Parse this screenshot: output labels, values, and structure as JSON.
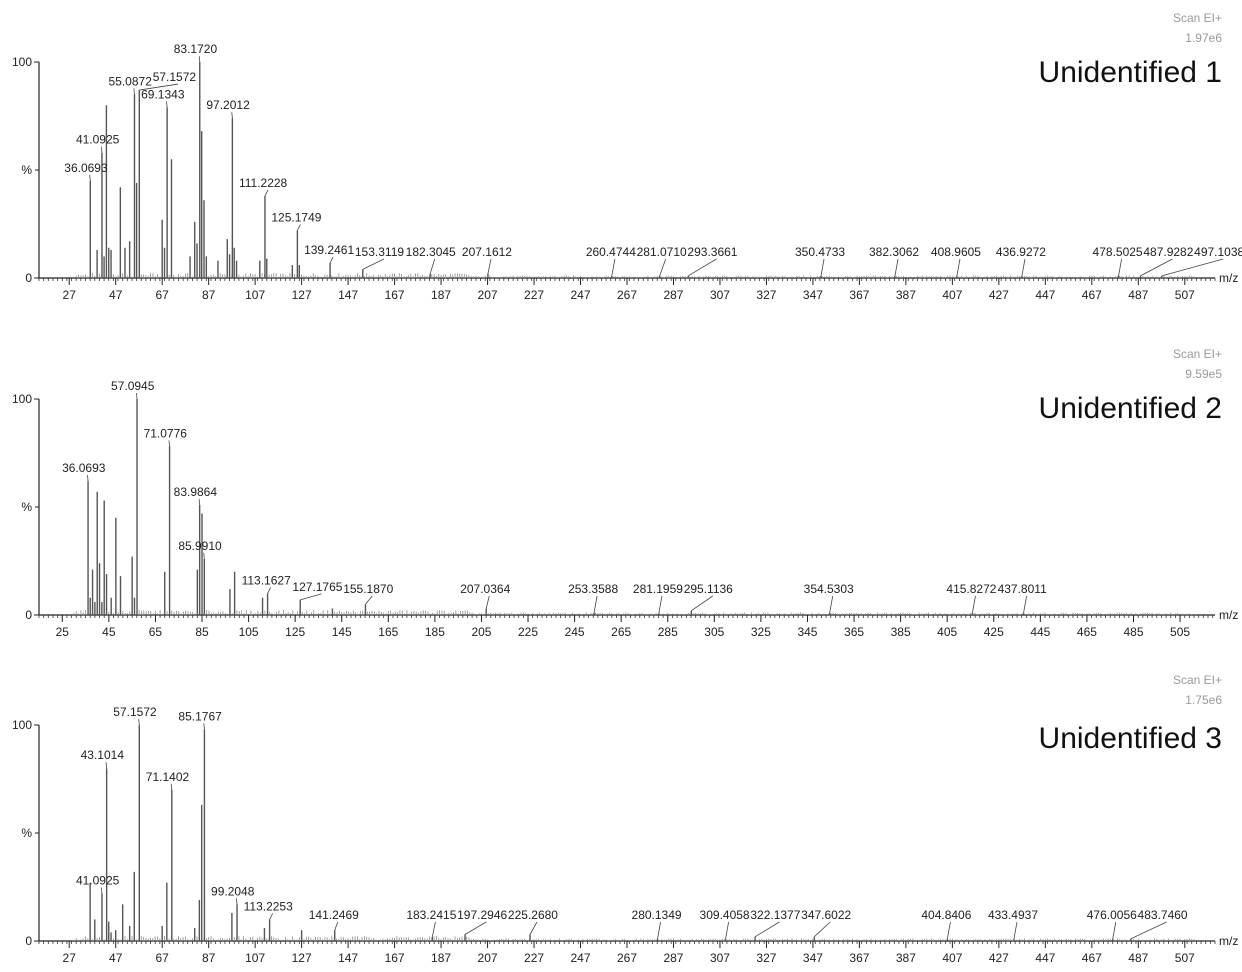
{
  "chart_data": [
    {
      "type": "bar",
      "title": "Unidentified 1",
      "scan_mode": "Scan EI+",
      "intensity": "1.97e6",
      "xlabel": "m/z",
      "ylabel": "%",
      "xlim": [
        14,
        520
      ],
      "ylim": [
        0,
        100
      ],
      "xticks": [
        27,
        47,
        67,
        87,
        107,
        127,
        147,
        167,
        187,
        207,
        227,
        247,
        267,
        287,
        307,
        327,
        347,
        367,
        387,
        407,
        427,
        447,
        467,
        487,
        507
      ],
      "yticks": [
        0,
        100
      ],
      "peaks": [
        {
          "mz": 36.0693,
          "rel": 45,
          "label": "36.0693"
        },
        {
          "mz": 39.0,
          "rel": 13
        },
        {
          "mz": 41.0925,
          "rel": 58,
          "label": "41.0925"
        },
        {
          "mz": 42.0,
          "rel": 10
        },
        {
          "mz": 43.0,
          "rel": 80
        },
        {
          "mz": 44.0,
          "rel": 14
        },
        {
          "mz": 45.0,
          "rel": 13
        },
        {
          "mz": 49.0,
          "rel": 42
        },
        {
          "mz": 51.0,
          "rel": 14
        },
        {
          "mz": 53.0,
          "rel": 17
        },
        {
          "mz": 55.0872,
          "rel": 85,
          "label": "55.0872"
        },
        {
          "mz": 56.0,
          "rel": 44
        },
        {
          "mz": 57.1572,
          "rel": 87,
          "label": "57.1572"
        },
        {
          "mz": 67.0,
          "rel": 27
        },
        {
          "mz": 68.0,
          "rel": 14
        },
        {
          "mz": 69.1343,
          "rel": 79,
          "label": "69.1343"
        },
        {
          "mz": 71.0,
          "rel": 55
        },
        {
          "mz": 79.0,
          "rel": 10
        },
        {
          "mz": 81.0,
          "rel": 26
        },
        {
          "mz": 82.0,
          "rel": 16
        },
        {
          "mz": 83.172,
          "rel": 100,
          "label": "83.1720"
        },
        {
          "mz": 84.0,
          "rel": 68
        },
        {
          "mz": 85.0,
          "rel": 36
        },
        {
          "mz": 86.0,
          "rel": 10
        },
        {
          "mz": 91.0,
          "rel": 8
        },
        {
          "mz": 95.0,
          "rel": 18
        },
        {
          "mz": 96.0,
          "rel": 11
        },
        {
          "mz": 97.2012,
          "rel": 74,
          "label": "97.2012"
        },
        {
          "mz": 98.0,
          "rel": 14
        },
        {
          "mz": 99.0,
          "rel": 8
        },
        {
          "mz": 109.0,
          "rel": 8
        },
        {
          "mz": 111.2228,
          "rel": 38,
          "label": "111.2228"
        },
        {
          "mz": 112.0,
          "rel": 9
        },
        {
          "mz": 123.0,
          "rel": 6
        },
        {
          "mz": 125.1749,
          "rel": 22,
          "label": "125.1749"
        },
        {
          "mz": 126.0,
          "rel": 6
        },
        {
          "mz": 139.2461,
          "rel": 7,
          "label": "139.2461"
        },
        {
          "mz": 153.3119,
          "rel": 4,
          "label": "153.3119"
        },
        {
          "mz": 182.3045,
          "rel": 2,
          "label": "182.3045"
        },
        {
          "mz": 207.1612,
          "rel": 2,
          "label": "207.1612"
        },
        {
          "mz": 260.4744,
          "rel": 1,
          "label": "260.4744"
        },
        {
          "mz": 281.071,
          "rel": 1,
          "label": "281.0710"
        },
        {
          "mz": 293.3661,
          "rel": 1,
          "label": "293.3661"
        },
        {
          "mz": 350.4733,
          "rel": 1,
          "label": "350.4733"
        },
        {
          "mz": 382.3062,
          "rel": 1,
          "label": "382.3062"
        },
        {
          "mz": 408.9605,
          "rel": 1,
          "label": "408.9605"
        },
        {
          "mz": 436.9272,
          "rel": 1,
          "label": "436.9272"
        },
        {
          "mz": 478.5025,
          "rel": 1,
          "label": "478.5025"
        },
        {
          "mz": 487.9282,
          "rel": 1,
          "label": "487.9282"
        },
        {
          "mz": 497.1038,
          "rel": 1,
          "label": "497.1038"
        }
      ]
    },
    {
      "type": "bar",
      "title": "Unidentified 2",
      "scan_mode": "Scan EI+",
      "intensity": "9.59e5",
      "xlabel": "m/z",
      "ylabel": "%",
      "xlim": [
        15,
        520
      ],
      "ylim": [
        0,
        100
      ],
      "xticks": [
        25,
        45,
        65,
        85,
        105,
        125,
        145,
        165,
        185,
        205,
        225,
        245,
        265,
        285,
        305,
        325,
        345,
        365,
        385,
        405,
        425,
        445,
        465,
        485,
        505
      ],
      "yticks": [
        0,
        100
      ],
      "peaks": [
        {
          "mz": 36.0693,
          "rel": 62,
          "label": "36.0693"
        },
        {
          "mz": 37.0,
          "rel": 8
        },
        {
          "mz": 38.0,
          "rel": 21
        },
        {
          "mz": 39.0,
          "rel": 6
        },
        {
          "mz": 40.0,
          "rel": 57
        },
        {
          "mz": 41.0,
          "rel": 24
        },
        {
          "mz": 42.0,
          "rel": 6
        },
        {
          "mz": 43.0,
          "rel": 53
        },
        {
          "mz": 44.0,
          "rel": 19
        },
        {
          "mz": 46.0,
          "rel": 8
        },
        {
          "mz": 48.0,
          "rel": 45
        },
        {
          "mz": 50.0,
          "rel": 18
        },
        {
          "mz": 55.0,
          "rel": 27
        },
        {
          "mz": 56.0,
          "rel": 8
        },
        {
          "mz": 57.0945,
          "rel": 100,
          "label": "57.0945"
        },
        {
          "mz": 69.0,
          "rel": 20
        },
        {
          "mz": 71.0776,
          "rel": 78,
          "label": "71.0776"
        },
        {
          "mz": 83.0,
          "rel": 21
        },
        {
          "mz": 83.9864,
          "rel": 51,
          "label": "83.9864"
        },
        {
          "mz": 85.0,
          "rel": 47
        },
        {
          "mz": 85.991,
          "rel": 26,
          "label": "85.9910"
        },
        {
          "mz": 97.0,
          "rel": 12
        },
        {
          "mz": 99.0,
          "rel": 20
        },
        {
          "mz": 111.0,
          "rel": 8
        },
        {
          "mz": 113.1627,
          "rel": 10,
          "label": "113.1627"
        },
        {
          "mz": 127.1765,
          "rel": 7,
          "label": "127.1765"
        },
        {
          "mz": 141.0,
          "rel": 3
        },
        {
          "mz": 155.187,
          "rel": 5,
          "label": "155.1870"
        },
        {
          "mz": 207.0364,
          "rel": 3,
          "label": "207.0364"
        },
        {
          "mz": 253.3588,
          "rel": 1,
          "label": "253.3588"
        },
        {
          "mz": 281.1959,
          "rel": 1,
          "label": "281.1959"
        },
        {
          "mz": 295.1136,
          "rel": 2,
          "label": "295.1136"
        },
        {
          "mz": 354.5303,
          "rel": 1,
          "label": "354.5303"
        },
        {
          "mz": 415.8272,
          "rel": 1,
          "label": "415.8272"
        },
        {
          "mz": 437.8011,
          "rel": 1,
          "label": "437.8011"
        }
      ]
    },
    {
      "type": "bar",
      "title": "Unidentified 3",
      "scan_mode": "Scan EI+",
      "intensity": "1.75e6",
      "xlabel": "m/z",
      "ylabel": "%",
      "xlim": [
        14,
        520
      ],
      "ylim": [
        0,
        100
      ],
      "xticks": [
        27,
        47,
        67,
        87,
        107,
        127,
        147,
        167,
        187,
        207,
        227,
        247,
        267,
        287,
        307,
        327,
        347,
        367,
        387,
        407,
        427,
        447,
        467,
        487,
        507
      ],
      "yticks": [
        0,
        100
      ],
      "peaks": [
        {
          "mz": 36.0,
          "rel": 27
        },
        {
          "mz": 38.0,
          "rel": 10
        },
        {
          "mz": 41.0925,
          "rel": 22,
          "label": "41.0925"
        },
        {
          "mz": 43.1014,
          "rel": 80,
          "label": "43.1014"
        },
        {
          "mz": 44.0,
          "rel": 9
        },
        {
          "mz": 45.0,
          "rel": 4
        },
        {
          "mz": 47.0,
          "rel": 5
        },
        {
          "mz": 50.0,
          "rel": 17
        },
        {
          "mz": 53.0,
          "rel": 7
        },
        {
          "mz": 55.0,
          "rel": 32
        },
        {
          "mz": 57.1572,
          "rel": 100,
          "label": "57.1572"
        },
        {
          "mz": 67.0,
          "rel": 7
        },
        {
          "mz": 69.0,
          "rel": 27
        },
        {
          "mz": 71.1402,
          "rel": 70,
          "label": "71.1402"
        },
        {
          "mz": 81.0,
          "rel": 6
        },
        {
          "mz": 83.0,
          "rel": 19
        },
        {
          "mz": 84.0,
          "rel": 63
        },
        {
          "mz": 85.1767,
          "rel": 98,
          "label": "85.1767"
        },
        {
          "mz": 97.0,
          "rel": 13
        },
        {
          "mz": 99.2048,
          "rel": 17,
          "label": "99.2048"
        },
        {
          "mz": 111.0,
          "rel": 6
        },
        {
          "mz": 113.2253,
          "rel": 10,
          "label": "113.2253"
        },
        {
          "mz": 127.0,
          "rel": 5
        },
        {
          "mz": 141.2469,
          "rel": 5,
          "label": "141.2469"
        },
        {
          "mz": 183.2415,
          "rel": 2,
          "label": "183.2415"
        },
        {
          "mz": 197.2946,
          "rel": 3,
          "label": "197.2946"
        },
        {
          "mz": 225.268,
          "rel": 3,
          "label": "225.2680"
        },
        {
          "mz": 280.1349,
          "rel": 1,
          "label": "280.1349"
        },
        {
          "mz": 309.4058,
          "rel": 1,
          "label": "309.4058"
        },
        {
          "mz": 322.1377,
          "rel": 2,
          "label": "322.1377"
        },
        {
          "mz": 347.6022,
          "rel": 2,
          "label": "347.6022"
        },
        {
          "mz": 404.8406,
          "rel": 1,
          "label": "404.8406"
        },
        {
          "mz": 433.4937,
          "rel": 1,
          "label": "433.4937"
        },
        {
          "mz": 476.0056,
          "rel": 1,
          "label": "476.0056"
        },
        {
          "mz": 483.746,
          "rel": 1,
          "label": "483.7460"
        }
      ]
    }
  ]
}
